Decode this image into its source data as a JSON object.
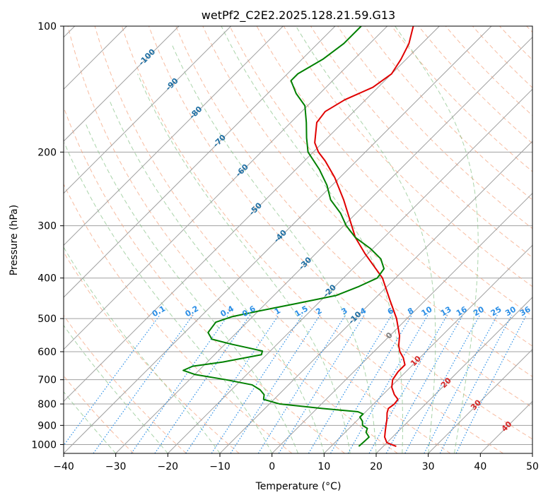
{
  "chart_data": {
    "type": "line",
    "title": "wetPf2_C2E2.2025.128.21.59.G13",
    "xlabel": "Temperature (°C)",
    "ylabel": "Pressure (hPa)",
    "xlim": [
      -40,
      50
    ],
    "ylim": [
      1050,
      100
    ],
    "y_scale": "log",
    "skew_degrees": 45,
    "grid": true,
    "x_ticks": [
      -40,
      -30,
      -20,
      -10,
      0,
      10,
      20,
      30,
      40,
      50
    ],
    "x_tick_labels": [
      "−40",
      "−30",
      "−20",
      "−10",
      "0",
      "10",
      "20",
      "30",
      "40",
      "50"
    ],
    "y_ticks": [
      1000,
      900,
      800,
      700,
      600,
      500,
      400,
      300,
      200,
      100
    ],
    "y_tick_labels": [
      "1000",
      "900",
      "800",
      "700",
      "600",
      "500",
      "400",
      "300",
      "200",
      "100"
    ],
    "colors": {
      "temperature": "#e00000",
      "dewpoint": "#008000",
      "isotherm": "#a0a0a0",
      "dry_adiabat": "#f4a582",
      "moist_adiabat": "#86c286",
      "mixing_ratio": "#2a8ee6",
      "isotherm_label_blue": "#1f6fa3",
      "isotherm_label_red": "#d62728",
      "zero_label": "#808080"
    },
    "series": [
      {
        "key": "temperature",
        "points": [
          {
            "p": 1010,
            "t": 22.5
          },
          {
            "p": 990,
            "t": 20.0
          },
          {
            "p": 960,
            "t": 18.5
          },
          {
            "p": 930,
            "t": 17.5
          },
          {
            "p": 900,
            "t": 16.5
          },
          {
            "p": 870,
            "t": 15.5
          },
          {
            "p": 840,
            "t": 14.3
          },
          {
            "p": 820,
            "t": 13.7
          },
          {
            "p": 800,
            "t": 14.0
          },
          {
            "p": 780,
            "t": 13.8
          },
          {
            "p": 760,
            "t": 12.2
          },
          {
            "p": 730,
            "t": 10.3
          },
          {
            "p": 700,
            "t": 9.0
          },
          {
            "p": 670,
            "t": 8.5
          },
          {
            "p": 645,
            "t": 8.5
          },
          {
            "p": 620,
            "t": 6.8
          },
          {
            "p": 600,
            "t": 5.0
          },
          {
            "p": 580,
            "t": 3.6
          },
          {
            "p": 550,
            "t": 1.9
          },
          {
            "p": 500,
            "t": -2.0
          },
          {
            "p": 450,
            "t": -7.0
          },
          {
            "p": 400,
            "t": -12.5
          },
          {
            "p": 350,
            "t": -20.5
          },
          {
            "p": 320,
            "t": -25.5
          },
          {
            "p": 290,
            "t": -30.0
          },
          {
            "p": 260,
            "t": -35.0
          },
          {
            "p": 230,
            "t": -41.0
          },
          {
            "p": 210,
            "t": -46.0
          },
          {
            "p": 200,
            "t": -49.0
          },
          {
            "p": 190,
            "t": -51.5
          },
          {
            "p": 170,
            "t": -55.0
          },
          {
            "p": 160,
            "t": -55.5
          },
          {
            "p": 150,
            "t": -54.0
          },
          {
            "p": 140,
            "t": -51.0
          },
          {
            "p": 130,
            "t": -50.0
          },
          {
            "p": 120,
            "t": -51.0
          },
          {
            "p": 110,
            "t": -52.5
          },
          {
            "p": 100,
            "t": -55.0
          }
        ]
      },
      {
        "key": "dewpoint",
        "points": [
          {
            "p": 1010,
            "t": 15.3
          },
          {
            "p": 990,
            "t": 15.4
          },
          {
            "p": 960,
            "t": 15.5
          },
          {
            "p": 935,
            "t": 14.0
          },
          {
            "p": 915,
            "t": 13.5
          },
          {
            "p": 900,
            "t": 12.0
          },
          {
            "p": 880,
            "t": 11.2
          },
          {
            "p": 860,
            "t": 9.9
          },
          {
            "p": 845,
            "t": 9.9
          },
          {
            "p": 835,
            "t": 8.5
          },
          {
            "p": 820,
            "t": 1.0
          },
          {
            "p": 800,
            "t": -8.0
          },
          {
            "p": 780,
            "t": -12.0
          },
          {
            "p": 760,
            "t": -12.8
          },
          {
            "p": 740,
            "t": -14.5
          },
          {
            "p": 720,
            "t": -17.0
          },
          {
            "p": 700,
            "t": -23.0
          },
          {
            "p": 680,
            "t": -30.0
          },
          {
            "p": 665,
            "t": -33.0
          },
          {
            "p": 650,
            "t": -32.0
          },
          {
            "p": 635,
            "t": -27.0
          },
          {
            "p": 610,
            "t": -21.0
          },
          {
            "p": 598,
            "t": -21.5
          },
          {
            "p": 590,
            "t": -24.0
          },
          {
            "p": 575,
            "t": -29.0
          },
          {
            "p": 560,
            "t": -33.5
          },
          {
            "p": 540,
            "t": -35.5
          },
          {
            "p": 510,
            "t": -36.0
          },
          {
            "p": 495,
            "t": -34.0
          },
          {
            "p": 480,
            "t": -30.0
          },
          {
            "p": 460,
            "t": -24.0
          },
          {
            "p": 440,
            "t": -18.0
          },
          {
            "p": 420,
            "t": -15.5
          },
          {
            "p": 400,
            "t": -13.5
          },
          {
            "p": 380,
            "t": -14.0
          },
          {
            "p": 360,
            "t": -16.5
          },
          {
            "p": 340,
            "t": -20.5
          },
          {
            "p": 320,
            "t": -25.5
          },
          {
            "p": 300,
            "t": -29.5
          },
          {
            "p": 280,
            "t": -33.0
          },
          {
            "p": 260,
            "t": -37.5
          },
          {
            "p": 240,
            "t": -41.0
          },
          {
            "p": 220,
            "t": -45.5
          },
          {
            "p": 200,
            "t": -51.0
          },
          {
            "p": 185,
            "t": -54.0
          },
          {
            "p": 170,
            "t": -57.0
          },
          {
            "p": 155,
            "t": -60.5
          },
          {
            "p": 145,
            "t": -64.5
          },
          {
            "p": 135,
            "t": -68.0
          },
          {
            "p": 130,
            "t": -68.0
          },
          {
            "p": 120,
            "t": -66.0
          },
          {
            "p": 110,
            "t": -65.0
          },
          {
            "p": 100,
            "t": -65.0
          }
        ]
      }
    ],
    "isotherm_labels": [
      {
        "text": "-100",
        "t": -100,
        "p": 118,
        "color": "isotherm_label_blue"
      },
      {
        "text": "-90",
        "t": -90,
        "p": 137,
        "color": "isotherm_label_blue"
      },
      {
        "text": "-80",
        "t": -80,
        "p": 160,
        "color": "isotherm_label_blue"
      },
      {
        "text": "-70",
        "t": -70,
        "p": 187,
        "color": "isotherm_label_blue"
      },
      {
        "text": "-60",
        "t": -60,
        "p": 220,
        "color": "isotherm_label_blue"
      },
      {
        "text": "-50",
        "t": -50,
        "p": 272,
        "color": "isotherm_label_blue"
      },
      {
        "text": "-40",
        "t": -40,
        "p": 316,
        "color": "isotherm_label_blue"
      },
      {
        "text": "-30",
        "t": -30,
        "p": 367,
        "color": "isotherm_label_blue"
      },
      {
        "text": "-20",
        "t": -20,
        "p": 427,
        "color": "isotherm_label_blue"
      },
      {
        "text": "-10",
        "t": -10,
        "p": 495,
        "color": "isotherm_label_blue"
      },
      {
        "text": "0",
        "t": 0,
        "p": 546,
        "color": "zero_label"
      },
      {
        "text": "10",
        "t": 10,
        "p": 628,
        "color": "isotherm_label_red"
      },
      {
        "text": "20",
        "t": 20,
        "p": 708,
        "color": "isotherm_label_red"
      },
      {
        "text": "30",
        "t": 30,
        "p": 800,
        "color": "isotherm_label_red"
      },
      {
        "text": "40",
        "t": 40,
        "p": 900,
        "color": "isotherm_label_red"
      }
    ],
    "mixing_ratio_labels": [
      "0.1",
      "0.2",
      "0.4",
      "0.6",
      "1",
      "1.5",
      "2",
      "3",
      "4",
      "6",
      "8",
      "10",
      "13",
      "16",
      "20",
      "25",
      "30",
      "36"
    ],
    "mixing_ratio_label_pressure": 490
  }
}
